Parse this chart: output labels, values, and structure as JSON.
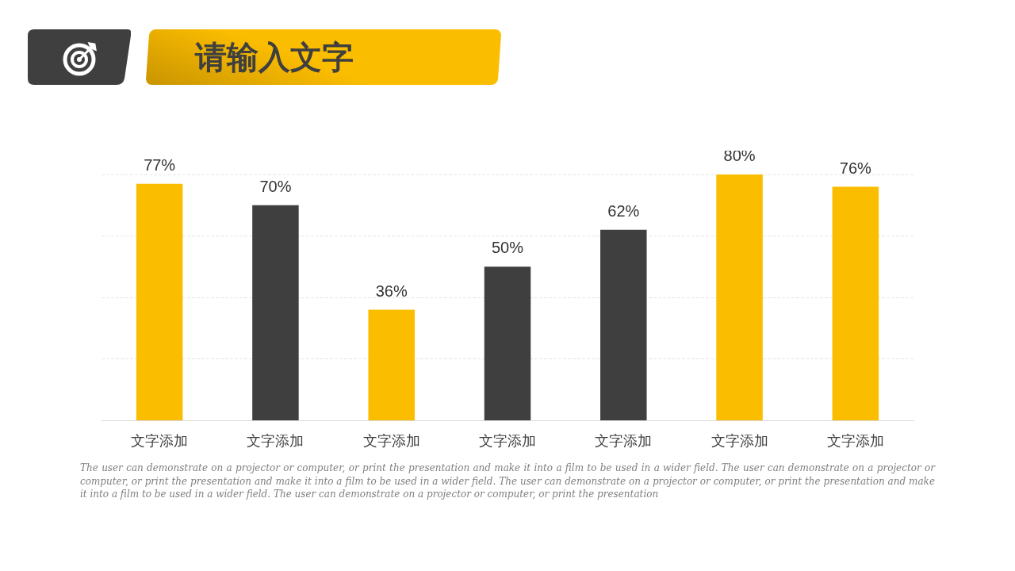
{
  "chart_data": {
    "type": "bar",
    "title": "请输入文字",
    "categories": [
      "文字添加",
      "文字添加",
      "文字添加",
      "文字添加",
      "文字添加",
      "文字添加",
      "文字添加"
    ],
    "values": [
      77,
      70,
      36,
      50,
      62,
      80,
      76
    ],
    "value_labels": [
      "77%",
      "70%",
      "36%",
      "50%",
      "62%",
      "80%",
      "76%"
    ],
    "colors": [
      "#fbbd00",
      "#3f3f3f",
      "#fbbd00",
      "#3f3f3f",
      "#3f3f3f",
      "#fbbd00",
      "#fbbd00"
    ],
    "grid": "y",
    "tick_labels": "x",
    "annotations": [
      "The user can demonstrate on a projector or computer, or print the presentation and make it into a film to be used in a wider field. The user can demonstrate on a projector or computer, or print the presentation and make it into a film to be used in a wider field. The user can demonstrate on a projector or computer, or print the presentation and make it into a film to be used in a wider field. The user can demonstrate on a projector or computer, or print the presentation"
    ]
  }
}
